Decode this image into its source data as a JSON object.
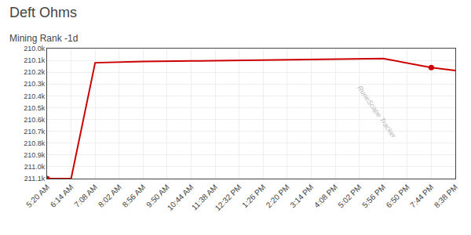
{
  "chart_data": {
    "type": "line",
    "title": "Deft Ohms",
    "subtitle": "Mining Rank -1d",
    "annotations": [
      "RuneScape Tracker"
    ],
    "x": [
      0,
      1,
      2,
      4,
      6,
      8,
      10,
      12,
      14,
      16,
      17
    ],
    "series": [
      {
        "values": [
          211100,
          211100,
          210120,
          210110,
          210105,
          210100,
          210095,
          210090,
          210085,
          210160,
          210185
        ],
        "color": "#cc0000",
        "marker": "none",
        "line_style": "solid"
      },
      {
        "type": "scatter",
        "x": [
          0,
          16
        ],
        "values": [
          211100,
          210160
        ],
        "color": "#cc0000",
        "marker": "circle"
      }
    ],
    "xlim": [
      0,
      17
    ],
    "xticks": [
      {
        "value": 0,
        "label": "5:20 AM"
      },
      {
        "value": 1,
        "label": "6:14 AM"
      },
      {
        "value": 2,
        "label": "7:08 AM"
      },
      {
        "value": 3,
        "label": "8:02 AM"
      },
      {
        "value": 4,
        "label": "8:56 AM"
      },
      {
        "value": 5,
        "label": "9:50 AM"
      },
      {
        "value": 6,
        "label": "10:44 AM"
      },
      {
        "value": 7,
        "label": "11:38 AM"
      },
      {
        "value": 8,
        "label": "12:32 PM"
      },
      {
        "value": 9,
        "label": "1:26 PM"
      },
      {
        "value": 10,
        "label": "2:20 PM"
      },
      {
        "value": 11,
        "label": "3:14 PM"
      },
      {
        "value": 12,
        "label": "4:08 PM"
      },
      {
        "value": 13,
        "label": "5:02 PM"
      },
      {
        "value": 14,
        "label": "5:56 PM"
      },
      {
        "value": 15,
        "label": "6:50 PM"
      },
      {
        "value": 16,
        "label": "7:44 PM"
      },
      {
        "value": 17,
        "label": "8:38 PM"
      }
    ],
    "ylim": [
      211100,
      210000
    ],
    "yticks": [
      {
        "value": 210000,
        "label": "210.0k"
      },
      {
        "value": 210100,
        "label": "210.1k"
      },
      {
        "value": 210200,
        "label": "210.2k"
      },
      {
        "value": 210300,
        "label": "210.3k"
      },
      {
        "value": 210400,
        "label": "210.4k"
      },
      {
        "value": 210500,
        "label": "210.5k"
      },
      {
        "value": 210600,
        "label": "210.6k"
      },
      {
        "value": 210700,
        "label": "210.7k"
      },
      {
        "value": 210800,
        "label": "210.8k"
      },
      {
        "value": 210900,
        "label": "210.9k"
      },
      {
        "value": 211000,
        "label": "211.0k"
      },
      {
        "value": 211100,
        "label": "211.1k"
      }
    ],
    "grid": true
  }
}
